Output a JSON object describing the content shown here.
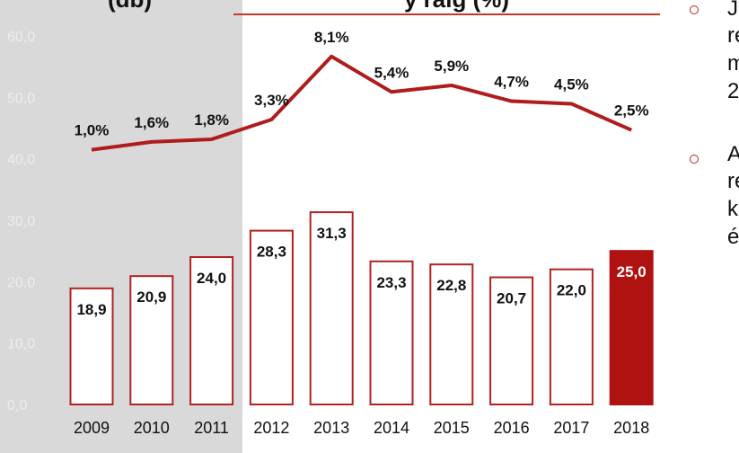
{
  "header": {
    "title_left": "(db)",
    "title_right": "y ráig (%)"
  },
  "side_text": {
    "bullet1_lines": [
      "J",
      "re",
      "m",
      "2"
    ],
    "bullet2_lines": [
      "A",
      "re",
      "k",
      "é"
    ]
  },
  "colors": {
    "bar_outline": "#b22222",
    "bar_highlight": "#b01212",
    "line": "#b01c1c",
    "panel_gray": "#d9d9d9"
  },
  "chart_data": {
    "type": "bar+line",
    "categories": [
      "2009",
      "2010",
      "2011",
      "2012",
      "2013",
      "2014",
      "2015",
      "2016",
      "2017",
      "2018"
    ],
    "series": [
      {
        "type": "bar",
        "values": [
          18.9,
          20.9,
          24.0,
          28.3,
          31.3,
          23.3,
          22.8,
          20.7,
          22.0,
          25.0
        ],
        "labels": [
          "18,9",
          "20,9",
          "24,0",
          "28,3",
          "31,3",
          "23,3",
          "22,8",
          "20,7",
          "22,0",
          "25,0"
        ],
        "highlight_index": 9
      },
      {
        "type": "line",
        "values": [
          1.0,
          1.6,
          1.8,
          3.3,
          8.1,
          5.4,
          5.9,
          4.7,
          4.5,
          2.5
        ],
        "labels": [
          "1,0%",
          "1,6%",
          "1,8%",
          "3,3%",
          "8,1%",
          "5,4%",
          "5,9%",
          "4,7%",
          "4,5%",
          "2,5%"
        ]
      }
    ],
    "yaxis": {
      "ticks": [
        "0,0",
        "10,0",
        "20,0",
        "30,0",
        "40,0",
        "50,0",
        "60,0"
      ],
      "ylim": [
        0,
        60
      ]
    },
    "grid": false,
    "legend": "none"
  }
}
